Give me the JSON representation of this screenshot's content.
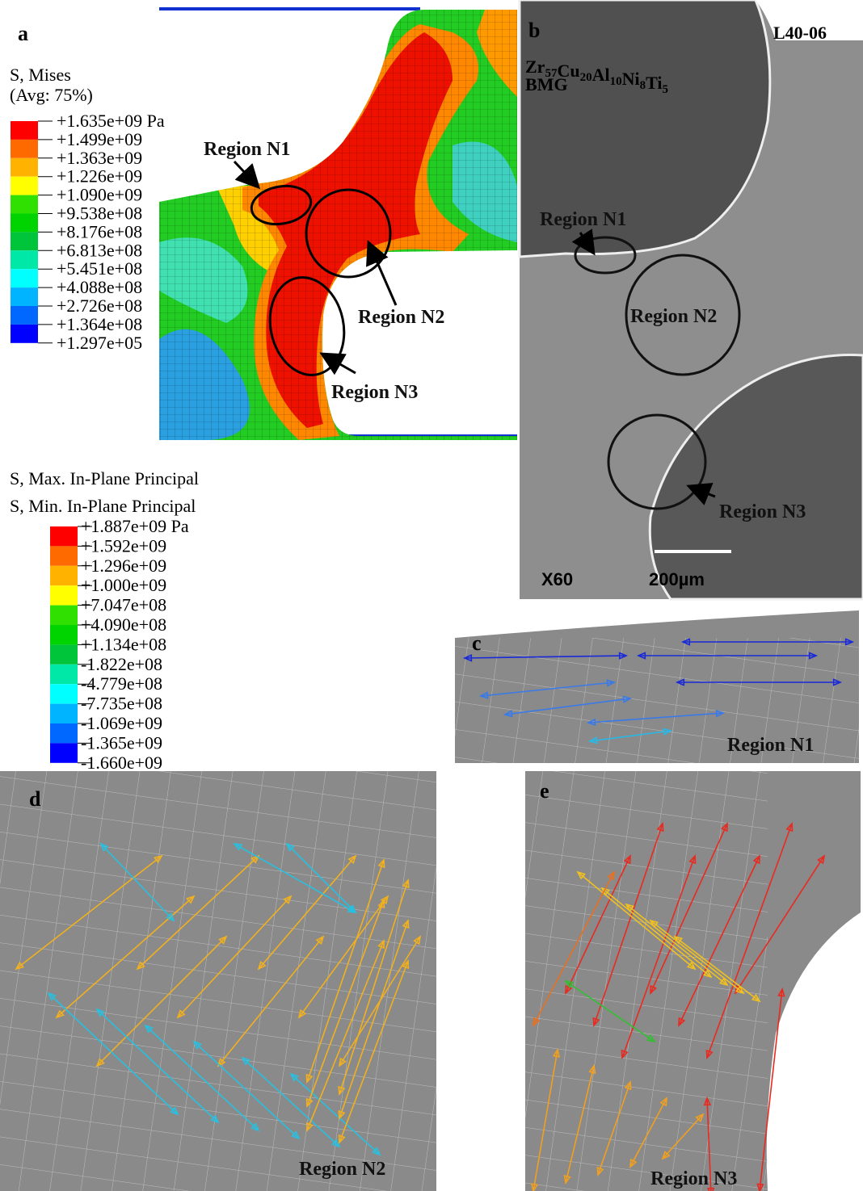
{
  "panel_a": {
    "label": "a",
    "legend": {
      "title": [
        "S, Mises",
        "(Avg: 75%)"
      ],
      "labels": [
        "+1.635e+09 Pa",
        "+1.499e+09",
        "+1.363e+09",
        "+1.226e+09",
        "+1.090e+09",
        "+9.538e+08",
        "+8.176e+08",
        "+6.813e+08",
        "+5.451e+08",
        "+4.088e+08",
        "+2.726e+08",
        "+1.364e+08",
        "+1.297e+05"
      ]
    },
    "regions": [
      "Region N1",
      "Region N2",
      "Region N3"
    ]
  },
  "panel_b": {
    "label": "b",
    "specimen": "L40-06",
    "composition": [
      [
        "Zr",
        "57"
      ],
      [
        "Cu",
        "20"
      ],
      [
        "Al",
        "10"
      ],
      [
        "Ni",
        "8"
      ],
      [
        "Ti",
        "5"
      ]
    ],
    "material": "BMG",
    "regions": [
      "Region N1",
      "Region N2",
      "Region N3"
    ],
    "magnification": "X60",
    "scale_bar": "200µm"
  },
  "principal_legend": {
    "title": [
      "S, Max. In-Plane Principal",
      "S, Min. In-Plane Principal"
    ],
    "labels": [
      "+1.887e+09 Pa",
      "+1.592e+09",
      "+1.296e+09",
      "+1.000e+09",
      "+7.047e+08",
      "+4.090e+08",
      "+1.134e+08",
      "-1.822e+08",
      "-4.779e+08",
      "-7.735e+08",
      "-1.069e+09",
      "-1.365e+09",
      "-1.660e+09"
    ]
  },
  "panel_c": {
    "label": "c",
    "region": "Region N1"
  },
  "panel_d": {
    "label": "d",
    "region": "Region N2"
  },
  "panel_e": {
    "label": "e",
    "region": "Region N3"
  }
}
